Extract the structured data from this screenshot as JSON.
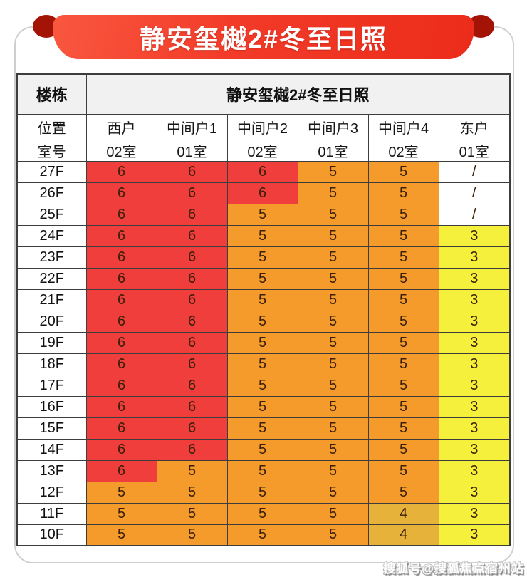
{
  "banner": {
    "title": "静安玺樾2#冬至日照"
  },
  "table": {
    "corner_label": "楼栋",
    "header_title": "静安玺樾2#冬至日照",
    "position_label": "位置",
    "room_label": "室号",
    "positions": [
      "西户",
      "中间户1",
      "中间户2",
      "中间户3",
      "中间户4",
      "东户"
    ],
    "rooms": [
      "02室",
      "01室",
      "02室",
      "01室",
      "02室",
      "01室"
    ],
    "value_colors": {
      "6": "red",
      "5": "orange",
      "4": "gold",
      "3": "yellow",
      "/": "none"
    },
    "floors": [
      {
        "floor": "27F",
        "values": [
          "6",
          "6",
          "6",
          "5",
          "5",
          "/"
        ]
      },
      {
        "floor": "26F",
        "values": [
          "6",
          "6",
          "6",
          "5",
          "5",
          "/"
        ]
      },
      {
        "floor": "25F",
        "values": [
          "6",
          "6",
          "5",
          "5",
          "5",
          "/"
        ]
      },
      {
        "floor": "24F",
        "values": [
          "6",
          "6",
          "5",
          "5",
          "5",
          "3"
        ]
      },
      {
        "floor": "23F",
        "values": [
          "6",
          "6",
          "5",
          "5",
          "5",
          "3"
        ]
      },
      {
        "floor": "22F",
        "values": [
          "6",
          "6",
          "5",
          "5",
          "5",
          "3"
        ]
      },
      {
        "floor": "21F",
        "values": [
          "6",
          "6",
          "5",
          "5",
          "5",
          "3"
        ]
      },
      {
        "floor": "20F",
        "values": [
          "6",
          "6",
          "5",
          "5",
          "5",
          "3"
        ]
      },
      {
        "floor": "19F",
        "values": [
          "6",
          "6",
          "5",
          "5",
          "5",
          "3"
        ]
      },
      {
        "floor": "18F",
        "values": [
          "6",
          "6",
          "5",
          "5",
          "5",
          "3"
        ]
      },
      {
        "floor": "17F",
        "values": [
          "6",
          "6",
          "5",
          "5",
          "5",
          "3"
        ]
      },
      {
        "floor": "16F",
        "values": [
          "6",
          "6",
          "5",
          "5",
          "5",
          "3"
        ]
      },
      {
        "floor": "15F",
        "values": [
          "6",
          "6",
          "5",
          "5",
          "5",
          "3"
        ]
      },
      {
        "floor": "14F",
        "values": [
          "6",
          "6",
          "5",
          "5",
          "5",
          "3"
        ]
      },
      {
        "floor": "13F",
        "values": [
          "6",
          "5",
          "5",
          "5",
          "5",
          "3"
        ]
      },
      {
        "floor": "12F",
        "values": [
          "5",
          "5",
          "5",
          "5",
          "5",
          "3"
        ]
      },
      {
        "floor": "11F",
        "values": [
          "5",
          "5",
          "5",
          "5",
          "4",
          "3"
        ]
      },
      {
        "floor": "10F",
        "values": [
          "5",
          "5",
          "5",
          "5",
          "4",
          "3"
        ]
      }
    ]
  },
  "colors": {
    "red": "#ef3e3c",
    "orange": "#f49b2b",
    "gold": "#e6b23a",
    "yellow": "#f4f03c",
    "none": "#ffffff",
    "banner_red": "#ee2d1c",
    "fold_dark_red": "#a31407",
    "table_border": "#3d3d3d"
  },
  "watermark": "搜狐号@搜狐焦点宿州站",
  "chart_data": {
    "type": "table",
    "title": "静安玺樾2#冬至日照",
    "row_axis_label": "楼栋",
    "column_headers_position": [
      "西户",
      "中间户1",
      "中间户2",
      "中间户3",
      "中间户4",
      "东户"
    ],
    "column_headers_room": [
      "02室",
      "01室",
      "02室",
      "01室",
      "02室",
      "01室"
    ],
    "rows": [
      "27F",
      "26F",
      "25F",
      "24F",
      "23F",
      "22F",
      "21F",
      "20F",
      "19F",
      "18F",
      "17F",
      "16F",
      "15F",
      "14F",
      "13F",
      "12F",
      "11F",
      "10F"
    ],
    "values": [
      [
        6,
        6,
        6,
        5,
        5,
        "/"
      ],
      [
        6,
        6,
        6,
        5,
        5,
        "/"
      ],
      [
        6,
        6,
        5,
        5,
        5,
        "/"
      ],
      [
        6,
        6,
        5,
        5,
        5,
        3
      ],
      [
        6,
        6,
        5,
        5,
        5,
        3
      ],
      [
        6,
        6,
        5,
        5,
        5,
        3
      ],
      [
        6,
        6,
        5,
        5,
        5,
        3
      ],
      [
        6,
        6,
        5,
        5,
        5,
        3
      ],
      [
        6,
        6,
        5,
        5,
        5,
        3
      ],
      [
        6,
        6,
        5,
        5,
        5,
        3
      ],
      [
        6,
        6,
        5,
        5,
        5,
        3
      ],
      [
        6,
        6,
        5,
        5,
        5,
        3
      ],
      [
        6,
        6,
        5,
        5,
        5,
        3
      ],
      [
        6,
        6,
        5,
        5,
        5,
        3
      ],
      [
        6,
        5,
        5,
        5,
        5,
        3
      ],
      [
        5,
        5,
        5,
        5,
        5,
        3
      ],
      [
        5,
        5,
        5,
        5,
        4,
        3
      ],
      [
        5,
        5,
        5,
        5,
        4,
        3
      ]
    ],
    "cell_color_legend": {
      "6": "#ef3e3c",
      "5": "#f49b2b",
      "4": "#e6b23a",
      "3": "#f4f03c",
      "/": "#ffffff"
    }
  }
}
